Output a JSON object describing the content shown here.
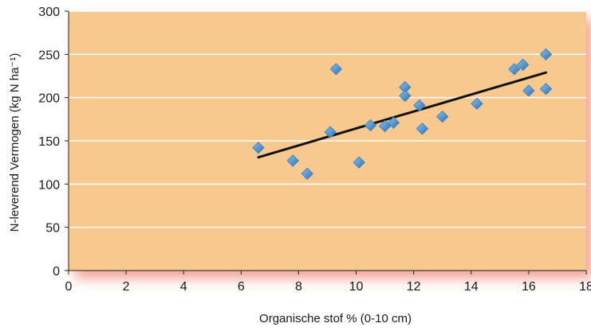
{
  "chart_data": {
    "type": "scatter",
    "xlabel": "Organische stof % (0-10 cm)",
    "ylabel": "N-leverend Vermogen (kg N ha⁻¹)",
    "xlim": [
      0,
      18
    ],
    "ylim": [
      0,
      300
    ],
    "x_ticks": [
      "0",
      "2",
      "4",
      "6",
      "8",
      "10",
      "12",
      "14",
      "16",
      "18"
    ],
    "y_ticks": [
      "0",
      "50",
      "100",
      "150",
      "200",
      "250",
      "300"
    ],
    "grid": "horizontal",
    "colors": {
      "plot_background": "#f8c98e",
      "marker": "#3b82c4",
      "trendline": "#111111",
      "gridline": "#ffffff"
    },
    "series": [
      {
        "x": [
          6.6,
          7.8,
          8.3,
          9.1,
          9.3,
          10.1,
          10.5,
          11.0,
          11.3,
          11.7,
          11.7,
          12.2,
          12.3,
          13.0,
          14.2,
          15.5,
          15.8,
          16.0,
          16.6,
          16.6
        ],
        "y": [
          142,
          127,
          112,
          160,
          233,
          125,
          168,
          167,
          171,
          212,
          202,
          191,
          164,
          178,
          193,
          233,
          238,
          208,
          250,
          210
        ]
      }
    ],
    "trendline": {
      "x": [
        6.6,
        16.6
      ],
      "y": [
        131,
        229
      ]
    }
  }
}
